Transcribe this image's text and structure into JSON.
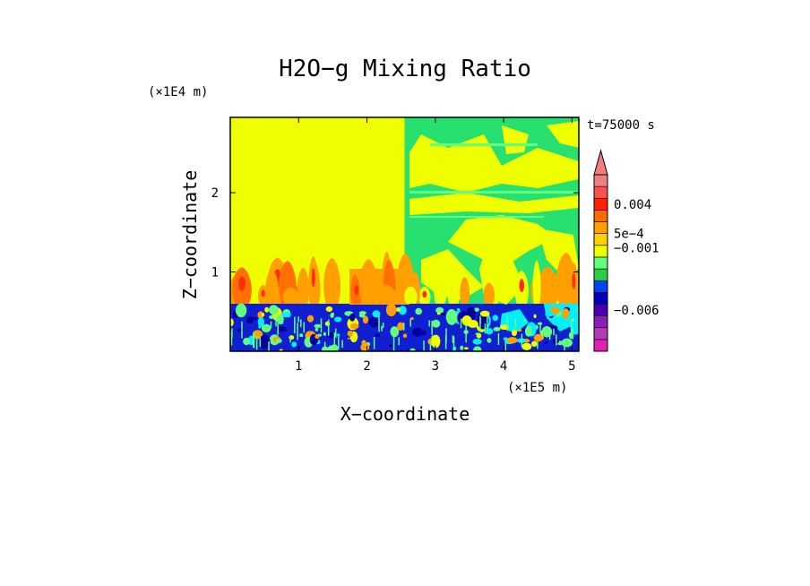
{
  "chart_data": {
    "type": "heatmap",
    "title": "H2O−g Mixing Ratio",
    "xlabel": "X−coordinate",
    "ylabel": "Z−coordinate",
    "x_unit": "(×1E5 m)",
    "y_unit": "(×1E4 m)",
    "time_label": "t=75000 s",
    "xlim": [
      0,
      5.1
    ],
    "ylim": [
      0,
      2.95
    ],
    "x_ticks": [
      {
        "value": 1,
        "label": "1"
      },
      {
        "value": 2,
        "label": "2"
      },
      {
        "value": 3,
        "label": "3"
      },
      {
        "value": 4,
        "label": "4"
      },
      {
        "value": 5,
        "label": "5"
      }
    ],
    "y_ticks": [
      {
        "value": 1,
        "label": "1"
      },
      {
        "value": 2,
        "label": "2"
      }
    ],
    "colorbar": {
      "levels": [
        "#e020b0",
        "#b03cb8",
        "#8820b8",
        "#4a00b0",
        "#0000c0",
        "#0046f0",
        "#28d040",
        "#60ff80",
        "#f0ff00",
        "#ffd000",
        "#ffa000",
        "#ff6a00",
        "#ff2000",
        "#ff5050",
        "#f08080"
      ],
      "extend_top_color": "#f08080",
      "labeled": [
        {
          "level_index": 12,
          "label": "0.004"
        },
        {
          "level_index": 9.5,
          "label": "5e−4"
        },
        {
          "level_index": 8.3,
          "label": "−0.001"
        },
        {
          "level_index": 3,
          "label": "−0.006"
        }
      ]
    },
    "regions": [
      {
        "name": "upper-left-background",
        "color": "#f0ff00",
        "x": [
          0,
          2.55
        ],
        "z": [
          0.6,
          2.95
        ]
      },
      {
        "name": "upper-right-background",
        "color": "#28e070",
        "x": [
          2.55,
          5.1
        ],
        "z": [
          0.6,
          2.95
        ]
      },
      {
        "name": "lower-boundary-layer",
        "color": "#1020d0",
        "x": [
          0,
          5.1
        ],
        "z": [
          0,
          0.6
        ]
      }
    ],
    "colors": {
      "yellow": "#f0ff00",
      "green": "#28e070",
      "light_green": "#60ff80",
      "cyan": "#00f0ff",
      "blue": "#1020d0",
      "dark_blue": "#0000a0",
      "orange": "#ffa000",
      "dark_orange": "#ff7000",
      "red": "#ff3000"
    }
  }
}
